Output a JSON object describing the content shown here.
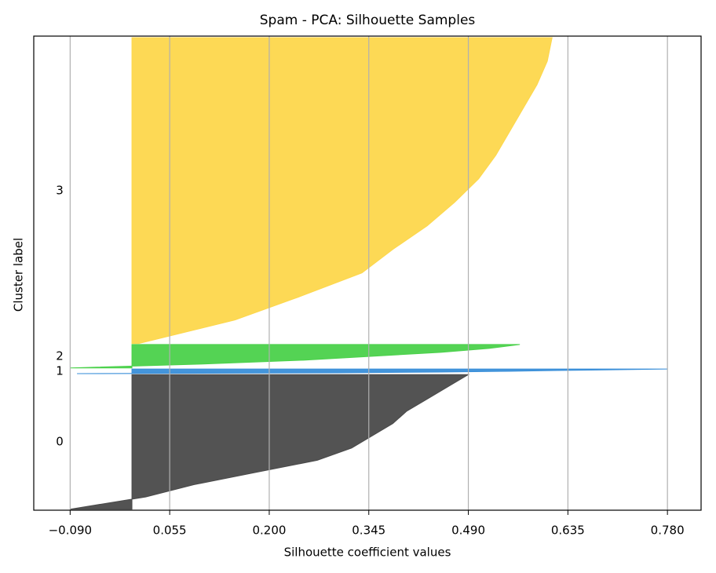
{
  "chart_data": {
    "type": "silhouette",
    "title": "Spam - PCA: Silhouette Samples",
    "x_label": "Silhouette coefficient values",
    "y_label": "Cluster label",
    "xlim": [
      -0.143,
      0.829
    ],
    "ylim": [
      0,
      4650
    ],
    "xticks": [
      {
        "value": -0.09,
        "label": "−0.090"
      },
      {
        "value": 0.055,
        "label": "0.055"
      },
      {
        "value": 0.2,
        "label": "0.200"
      },
      {
        "value": 0.345,
        "label": "0.345"
      },
      {
        "value": 0.49,
        "label": "0.490"
      },
      {
        "value": 0.635,
        "label": "0.635"
      },
      {
        "value": 0.78,
        "label": "0.780"
      }
    ],
    "grid": true,
    "series": [
      {
        "name": "0",
        "color": "#4a4a4a",
        "count": 1320,
        "values": [
          -0.09,
          0.02,
          0.09,
          0.18,
          0.27,
          0.32,
          0.35,
          0.38,
          0.4,
          0.43,
          0.46,
          0.49
        ]
      },
      {
        "name": "1",
        "color": "#3a8fd9",
        "count": 45,
        "values": [
          -0.08,
          0.3,
          0.45,
          0.55,
          0.62,
          0.7,
          0.78
        ]
      },
      {
        "name": "2",
        "color": "#4bd14b",
        "count": 230,
        "values": [
          -0.09,
          0.1,
          0.25,
          0.35,
          0.45,
          0.52,
          0.565
        ]
      },
      {
        "name": "3",
        "color": "#fdd74c",
        "count": 3000,
        "values": [
          0.01,
          0.15,
          0.245,
          0.335,
          0.38,
          0.43,
          0.47,
          0.505,
          0.53,
          0.55,
          0.57,
          0.59,
          0.605,
          0.612
        ]
      }
    ]
  }
}
